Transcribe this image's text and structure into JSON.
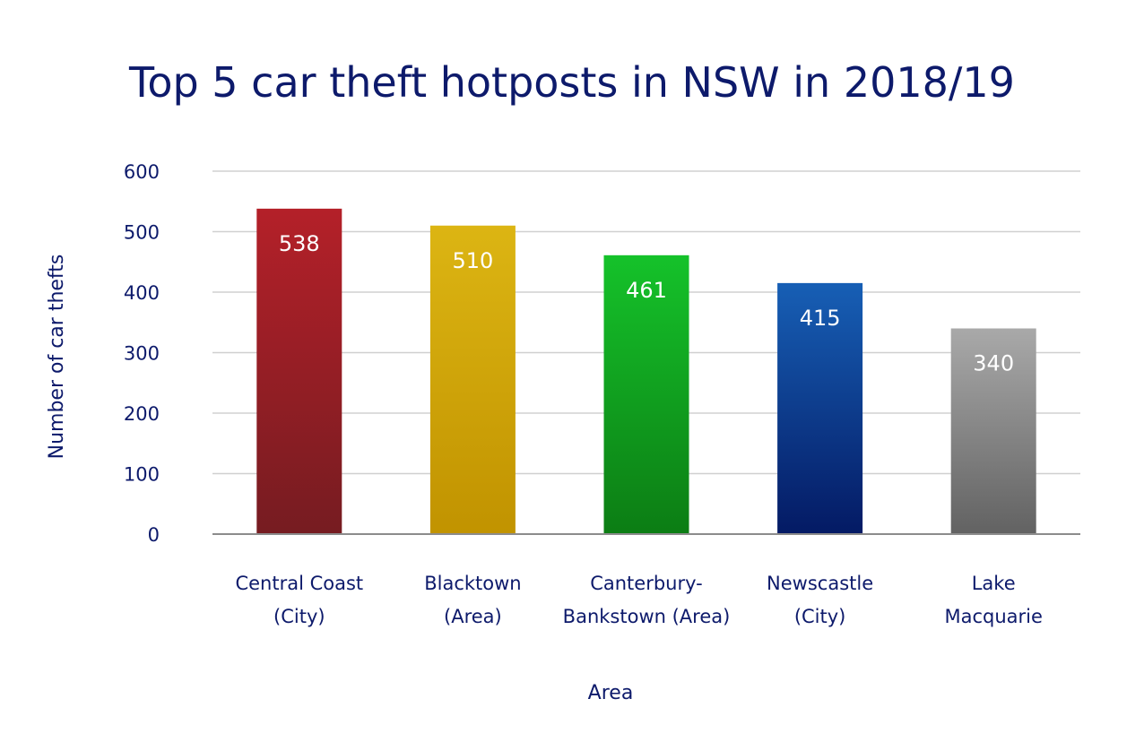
{
  "chart_data": {
    "type": "bar",
    "title": "Top 5 car theft hotposts in NSW in 2018/19",
    "xlabel": "Area",
    "ylabel": "Number of car thefts",
    "categories": [
      [
        "Central Coast",
        "(City)"
      ],
      [
        "Blacktown",
        "(Area)"
      ],
      [
        "Canterbury-",
        "Bankstown (Area)"
      ],
      [
        "Newscastle",
        "(City)"
      ],
      [
        "Lake",
        "Macquarie"
      ]
    ],
    "values": [
      538,
      510,
      461,
      415,
      340
    ],
    "data_labels": [
      "538",
      "510",
      "461",
      "415",
      "340"
    ],
    "ylim": [
      0,
      600
    ],
    "yticks": [
      0,
      100,
      200,
      300,
      400,
      500,
      600
    ],
    "grid": true,
    "legend": "none",
    "bar_colors": [
      [
        "#b42029",
        "#761c21"
      ],
      [
        "#dcb513",
        "#c19300"
      ],
      [
        "#15c22a",
        "#0c7d14"
      ],
      [
        "#175fb5",
        "#041a64"
      ],
      [
        "#a9a9a9",
        "#626262"
      ]
    ]
  },
  "colors": {
    "text": "#0d1a6b",
    "grid": "#d0d0d0",
    "axis": "#8c8c8c"
  }
}
